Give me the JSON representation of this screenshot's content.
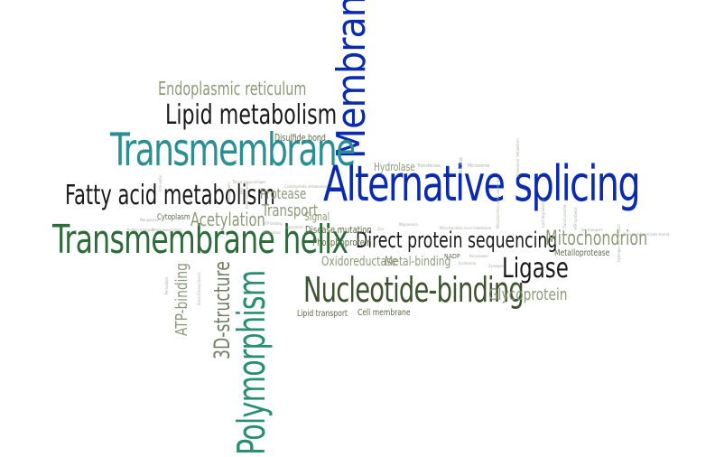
{
  "colors": {
    "blue": "#0a2bb0",
    "teal": "#2a8f92",
    "dark_green": "#2e5029",
    "olive": "#4a5a33",
    "gray_green": "#8b9a78",
    "light_gray": "#a7b0a0",
    "black": "#1a1a1a"
  },
  "words": {
    "membrane": "Membrane",
    "alternative_splicing": "Alternative splicing",
    "transmembrane": "Transmembrane",
    "transmembrane_helix": "Transmembrane helix",
    "polymorphism": "Polymorphism",
    "lipid_metabolism": "Lipid metabolism",
    "fatty_acid_metabolism": "Fatty acid metabolism",
    "endoplasmic_reticulum": "Endoplasmic reticulum",
    "direct_protein_sequencing": "Direct protein sequencing",
    "nucleotide_binding": "Nucleotide-binding",
    "ligase": "Ligase",
    "mitochondrion": "Mitochondrion",
    "glycoprotein": "Glycoprotein",
    "three_d_structure": "3D-structure",
    "atp_binding": "ATP-binding",
    "acetylation": "Acetylation",
    "transport": "Transport",
    "protease": "Protease",
    "oxidoreductase": "Oxidoreductase",
    "metal_binding": "Metal-binding",
    "phosphoprotein": "Phosphoprotein",
    "disease_mutation": "Disease mutation",
    "signal": "Signal",
    "hydrolase": "Hydrolase",
    "disulfide_bond": "Disulfide bond",
    "cytoplasm": "Cytoplasm",
    "lipid_transport": "Lipid transport",
    "cell_membrane": "Cell membrane",
    "metalloprotease": "Metalloprotease",
    "nadp": "NADP",
    "transferase": "Transferase",
    "microsome": "Microsome",
    "nucleus": "Nucleus",
    "mitochondrion_inner_membrane": "Mitochondrion inner membrane",
    "mitochondrion_outer_membrane": "Mitochondrion outer membrane",
    "peroxisome": "Peroxisome",
    "zymogen": "Zymogen",
    "cholesterol_metabolism": "Cholesterol metabolism",
    "carbohydrate_metabolism": "Carbohydrate metabolism",
    "gtp_binding": "GTP-binding",
    "prenylation": "Prenylation",
    "lipoprotein": "Lipoprotein",
    "magnesium": "Magnesium",
    "manganese": "Manganese",
    "protein_transport": "Protein transport",
    "blood_group_antigen": "Blood group antigen",
    "sterol_biosynthesis": "Sterol biosynthesis",
    "golgi_apparatus": "Golgi apparatus",
    "iron": "Iron",
    "zinc": "Zinc",
    "peroxidase": "Peroxidase",
    "steroid_biosynthesis": "Steroid biosynthesis",
    "atp_synthesis": "ATP synthesis",
    "lipid_degradation": "Lipid degradation",
    "transit_peptide": "Transit peptide",
    "hydrogen_ion_transport": "Hydrogen ion transport",
    "ion_transport": "Ion transport",
    "endosome": "Endosome",
    "transmembrane_beta_strand": "Transmembrane beta strand",
    "iron_sulfur": "Iron-sulfur",
    "fad": "FAD",
    "flavoprotein": "Flavoprotein"
  }
}
